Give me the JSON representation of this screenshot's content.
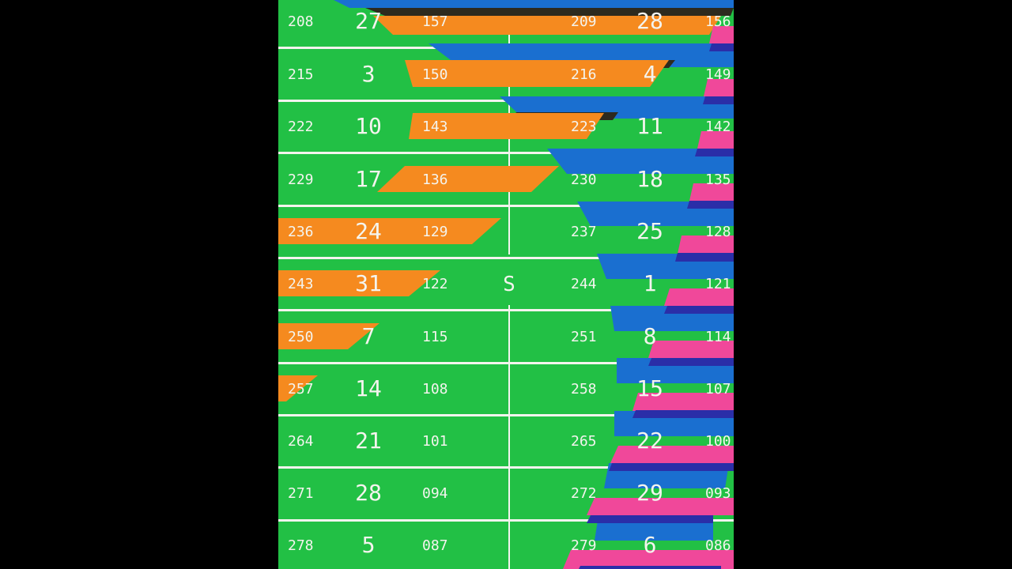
{
  "colors": {
    "field": "#22c045",
    "orange": "#f58a1f",
    "blue": "#1a6fd0",
    "navy": "#2a2ea8",
    "pink": "#f0489a",
    "black_stripe": "#2d2a1e",
    "line": "#f4f4ee",
    "background": "#000000"
  },
  "center_label": "S",
  "rows": [
    {
      "left_a": "208",
      "left_big": "27",
      "left_b": "157",
      "right_a": "209",
      "right_big": "28",
      "right_b": "156"
    },
    {
      "left_a": "215",
      "left_big": "3",
      "left_b": "150",
      "right_a": "216",
      "right_big": "4",
      "right_b": "149"
    },
    {
      "left_a": "222",
      "left_big": "10",
      "left_b": "143",
      "right_a": "223",
      "right_big": "11",
      "right_b": "142"
    },
    {
      "left_a": "229",
      "left_big": "17",
      "left_b": "136",
      "right_a": "230",
      "right_big": "18",
      "right_b": "135"
    },
    {
      "left_a": "236",
      "left_big": "24",
      "left_b": "129",
      "right_a": "237",
      "right_big": "25",
      "right_b": "128"
    },
    {
      "left_a": "243",
      "left_big": "31",
      "left_b": "122",
      "right_a": "244",
      "right_big": "1",
      "right_b": "121"
    },
    {
      "left_a": "250",
      "left_big": "7",
      "left_b": "115",
      "right_a": "251",
      "right_big": "8",
      "right_b": "114"
    },
    {
      "left_a": "257",
      "left_big": "14",
      "left_b": "108",
      "right_a": "258",
      "right_big": "15",
      "right_b": "107"
    },
    {
      "left_a": "264",
      "left_big": "21",
      "left_b": "101",
      "right_a": "265",
      "right_big": "22",
      "right_b": "100"
    },
    {
      "left_a": "271",
      "left_big": "28",
      "left_b": "094",
      "right_a": "272",
      "right_big": "29",
      "right_b": "093"
    },
    {
      "left_a": "278",
      "left_big": "5",
      "left_b": "087",
      "right_a": "279",
      "right_big": "6",
      "right_b": "086"
    }
  ]
}
